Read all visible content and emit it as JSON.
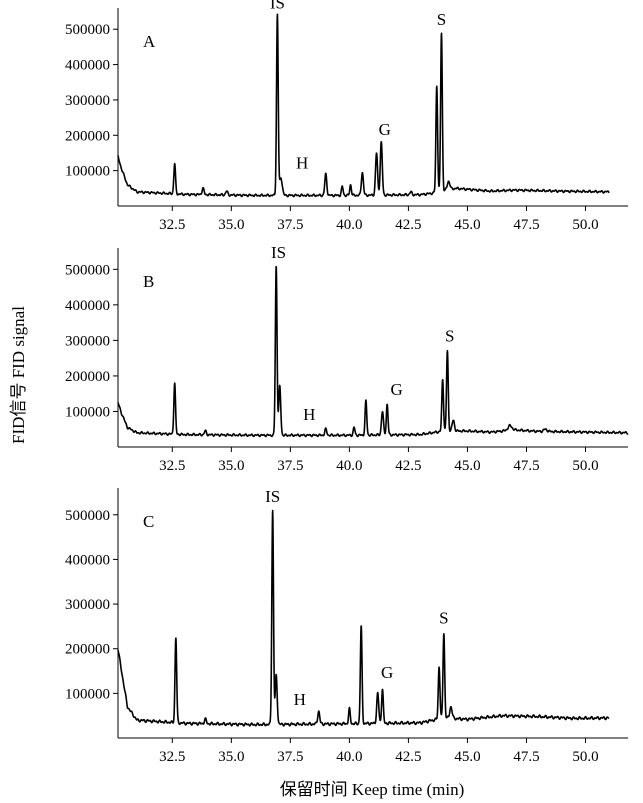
{
  "chart_data": {
    "type": "line",
    "y_title": "FID信号 FID signal",
    "x_title": "保留时间 Keep time (min)",
    "panels": [
      {
        "label": "A",
        "xlim": [
          30.2,
          51.8
        ],
        "ylim": [
          0,
          560000
        ],
        "xticks": [
          32.5,
          35.0,
          37.5,
          40.0,
          42.5,
          45.0,
          47.5,
          50.0
        ],
        "xtick_labels": [
          "32.5",
          "35.0",
          "37.5",
          "40.0",
          "42.5",
          "45.0",
          "47.5",
          "50.0"
        ],
        "yticks": [
          100000,
          200000,
          300000,
          400000,
          500000
        ],
        "ytick_labels": [
          "100000",
          "200000",
          "300000",
          "400000",
          "500000"
        ],
        "x_end": 51.0,
        "baseline": [
          [
            30.2,
            140000
          ],
          [
            30.35,
            105000
          ],
          [
            30.6,
            60000
          ],
          [
            31.0,
            40000
          ],
          [
            33.0,
            33000
          ],
          [
            36.0,
            30000
          ],
          [
            40.0,
            30000
          ],
          [
            43.0,
            32000
          ],
          [
            43.5,
            36000
          ],
          [
            44.5,
            50000
          ],
          [
            46.0,
            42000
          ],
          [
            47.0,
            45000
          ],
          [
            49.0,
            42000
          ],
          [
            51.0,
            40000
          ]
        ],
        "peaks": [
          {
            "x": 32.6,
            "y": 120000,
            "w": 0.05
          },
          {
            "x": 33.8,
            "y": 50000,
            "w": 0.06
          },
          {
            "x": 34.8,
            "y": 42000,
            "w": 0.06
          },
          {
            "x": 36.95,
            "y": 540000,
            "w": 0.05
          },
          {
            "x": 37.1,
            "y": 80000,
            "w": 0.08
          },
          {
            "x": 39.0,
            "y": 90000,
            "w": 0.06
          },
          {
            "x": 39.7,
            "y": 55000,
            "w": 0.05
          },
          {
            "x": 40.05,
            "y": 60000,
            "w": 0.05
          },
          {
            "x": 40.55,
            "y": 95000,
            "w": 0.06
          },
          {
            "x": 41.15,
            "y": 150000,
            "w": 0.06
          },
          {
            "x": 41.35,
            "y": 180000,
            "w": 0.06
          },
          {
            "x": 42.6,
            "y": 40000,
            "w": 0.06
          },
          {
            "x": 43.7,
            "y": 340000,
            "w": 0.05
          },
          {
            "x": 43.9,
            "y": 490000,
            "w": 0.05
          },
          {
            "x": 44.2,
            "y": 70000,
            "w": 0.08
          }
        ],
        "peak_labels": [
          {
            "text": "IS",
            "x": 36.95,
            "y": 548000
          },
          {
            "text": "H",
            "x": 38.0,
            "y": 95000
          },
          {
            "text": "G",
            "x": 41.5,
            "y": 190000
          },
          {
            "text": "S",
            "x": 43.9,
            "y": 500000
          }
        ]
      },
      {
        "label": "B",
        "xlim": [
          30.2,
          51.8
        ],
        "ylim": [
          0,
          560000
        ],
        "xticks": [
          32.5,
          35.0,
          37.5,
          40.0,
          42.5,
          45.0,
          47.5,
          50.0
        ],
        "xtick_labels": [
          "32.5",
          "35.0",
          "37.5",
          "40.0",
          "42.5",
          "45.0",
          "47.5",
          "50.0"
        ],
        "yticks": [
          100000,
          200000,
          300000,
          400000,
          500000
        ],
        "ytick_labels": [
          "100000",
          "200000",
          "300000",
          "400000",
          "500000"
        ],
        "x_end": 51.8,
        "baseline": [
          [
            30.2,
            125000
          ],
          [
            30.35,
            95000
          ],
          [
            30.6,
            55000
          ],
          [
            31.0,
            40000
          ],
          [
            33.0,
            35000
          ],
          [
            36.0,
            33000
          ],
          [
            40.0,
            33000
          ],
          [
            43.0,
            35000
          ],
          [
            44.0,
            45000
          ],
          [
            45.0,
            45000
          ],
          [
            46.0,
            42000
          ],
          [
            47.0,
            48000
          ],
          [
            48.0,
            44000
          ],
          [
            50.0,
            42000
          ],
          [
            51.8,
            40000
          ]
        ],
        "peaks": [
          {
            "x": 32.6,
            "y": 180000,
            "w": 0.05
          },
          {
            "x": 33.9,
            "y": 45000,
            "w": 0.06
          },
          {
            "x": 36.9,
            "y": 510000,
            "w": 0.05
          },
          {
            "x": 37.05,
            "y": 170000,
            "w": 0.06
          },
          {
            "x": 39.0,
            "y": 50000,
            "w": 0.06
          },
          {
            "x": 40.2,
            "y": 55000,
            "w": 0.05
          },
          {
            "x": 40.7,
            "y": 130000,
            "w": 0.05
          },
          {
            "x": 41.4,
            "y": 100000,
            "w": 0.06
          },
          {
            "x": 41.6,
            "y": 120000,
            "w": 0.05
          },
          {
            "x": 43.95,
            "y": 190000,
            "w": 0.05
          },
          {
            "x": 44.15,
            "y": 270000,
            "w": 0.05
          },
          {
            "x": 44.4,
            "y": 75000,
            "w": 0.07
          },
          {
            "x": 46.8,
            "y": 60000,
            "w": 0.12
          },
          {
            "x": 48.3,
            "y": 50000,
            "w": 0.1
          }
        ],
        "peak_labels": [
          {
            "text": "IS",
            "x": 37.0,
            "y": 520000
          },
          {
            "text": "H",
            "x": 38.3,
            "y": 65000
          },
          {
            "text": "G",
            "x": 42.0,
            "y": 135000
          },
          {
            "text": "S",
            "x": 44.25,
            "y": 285000
          }
        ]
      },
      {
        "label": "C",
        "xlim": [
          30.2,
          51.8
        ],
        "ylim": [
          0,
          560000
        ],
        "xticks": [
          32.5,
          35.0,
          37.5,
          40.0,
          42.5,
          45.0,
          47.5,
          50.0
        ],
        "xtick_labels": [
          "32.5",
          "35.0",
          "37.5",
          "40.0",
          "42.5",
          "45.0",
          "47.5",
          "50.0"
        ],
        "yticks": [
          100000,
          200000,
          300000,
          400000,
          500000
        ],
        "ytick_labels": [
          "100000",
          "200000",
          "300000",
          "400000",
          "500000"
        ],
        "x_end": 51.0,
        "baseline": [
          [
            30.2,
            200000
          ],
          [
            30.35,
            150000
          ],
          [
            30.6,
            70000
          ],
          [
            31.0,
            40000
          ],
          [
            33.0,
            33000
          ],
          [
            36.0,
            30000
          ],
          [
            40.0,
            32000
          ],
          [
            43.0,
            34000
          ],
          [
            44.0,
            45000
          ],
          [
            45.0,
            42000
          ],
          [
            46.5,
            50000
          ],
          [
            48.0,
            48000
          ],
          [
            49.5,
            44000
          ],
          [
            51.0,
            45000
          ]
        ],
        "peaks": [
          {
            "x": 32.65,
            "y": 225000,
            "w": 0.05
          },
          {
            "x": 33.9,
            "y": 42000,
            "w": 0.06
          },
          {
            "x": 36.75,
            "y": 510000,
            "w": 0.05
          },
          {
            "x": 36.9,
            "y": 140000,
            "w": 0.06
          },
          {
            "x": 38.7,
            "y": 60000,
            "w": 0.06
          },
          {
            "x": 40.0,
            "y": 65000,
            "w": 0.05
          },
          {
            "x": 40.5,
            "y": 250000,
            "w": 0.05
          },
          {
            "x": 41.2,
            "y": 100000,
            "w": 0.06
          },
          {
            "x": 41.4,
            "y": 110000,
            "w": 0.05
          },
          {
            "x": 43.8,
            "y": 160000,
            "w": 0.05
          },
          {
            "x": 44.0,
            "y": 235000,
            "w": 0.05
          },
          {
            "x": 44.3,
            "y": 70000,
            "w": 0.07
          }
        ],
        "peak_labels": [
          {
            "text": "IS",
            "x": 36.75,
            "y": 520000
          },
          {
            "text": "H",
            "x": 37.9,
            "y": 65000
          },
          {
            "text": "G",
            "x": 41.6,
            "y": 125000
          },
          {
            "text": "S",
            "x": 44.0,
            "y": 248000
          }
        ]
      }
    ]
  }
}
